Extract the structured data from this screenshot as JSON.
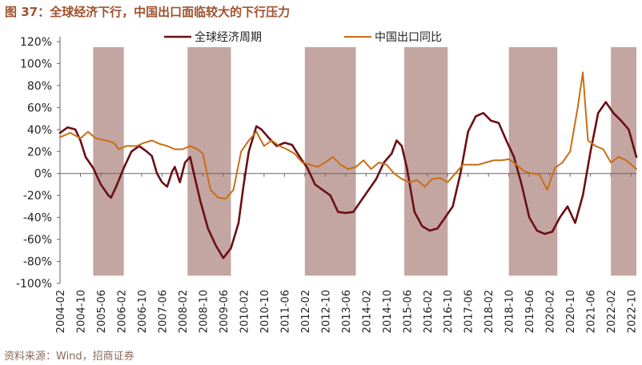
{
  "title": "图 37：全球经济下行，中国出口面临较大的下行压力",
  "source": "资料来源：Wind，招商证券",
  "chart_data": {
    "type": "line",
    "title": "图 37：全球经济下行，中国出口面临较大的下行压力",
    "xlabel": "",
    "ylabel": "",
    "ylim": [
      -100,
      120
    ],
    "yticks": [
      120,
      100,
      80,
      60,
      40,
      20,
      0,
      -20,
      -40,
      -60,
      -80,
      -100
    ],
    "ytick_labels": [
      "120%",
      "100%",
      "80%",
      "60%",
      "40%",
      "20%",
      "0%",
      "-20%",
      "-40%",
      "-60%",
      "-80%",
      "-100%"
    ],
    "x_tick_labels": [
      "2004-02",
      "2004-10",
      "2005-06",
      "2006-02",
      "2006-10",
      "2007-06",
      "2008-02",
      "2008-10",
      "2009-06",
      "2010-02",
      "2010-10",
      "2011-06",
      "2012-02",
      "2012-10",
      "2013-06",
      "2014-02",
      "2014-10",
      "2015-06",
      "2016-02",
      "2016-10",
      "2017-06",
      "2018-02",
      "2018-10",
      "2019-06",
      "2020-02",
      "2020-10",
      "2021-06",
      "2022-02",
      "2022-10"
    ],
    "x_range": [
      "2004-02",
      "2022-12"
    ],
    "grid": false,
    "legend_position": "top",
    "shaded_periods": [
      {
        "start": "2005-03",
        "end": "2006-03"
      },
      {
        "start": "2008-04",
        "end": "2009-09"
      },
      {
        "start": "2012-02",
        "end": "2013-10"
      },
      {
        "start": "2015-05",
        "end": "2016-10"
      },
      {
        "start": "2018-10",
        "end": "2020-05"
      },
      {
        "start": "2022-02",
        "end": "2022-12"
      }
    ],
    "shade_color": "#c3a5a2",
    "series": [
      {
        "name": "全球经济周期",
        "color": "#6b0f14",
        "points": [
          [
            "2004-02",
            37
          ],
          [
            "2004-05",
            42
          ],
          [
            "2004-08",
            40
          ],
          [
            "2004-10",
            30
          ],
          [
            "2004-12",
            15
          ],
          [
            "2005-03",
            5
          ],
          [
            "2005-06",
            -10
          ],
          [
            "2005-09",
            -20
          ],
          [
            "2005-10",
            -22
          ],
          [
            "2005-12",
            -12
          ],
          [
            "2006-03",
            5
          ],
          [
            "2006-06",
            20
          ],
          [
            "2006-09",
            25
          ],
          [
            "2006-12",
            20
          ],
          [
            "2007-02",
            16
          ],
          [
            "2007-04",
            0
          ],
          [
            "2007-06",
            -8
          ],
          [
            "2007-08",
            -12
          ],
          [
            "2007-10",
            2
          ],
          [
            "2007-11",
            6
          ],
          [
            "2008-01",
            -8
          ],
          [
            "2008-03",
            10
          ],
          [
            "2008-05",
            15
          ],
          [
            "2008-07",
            -5
          ],
          [
            "2008-09",
            -25
          ],
          [
            "2008-12",
            -50
          ],
          [
            "2009-03",
            -65
          ],
          [
            "2009-06",
            -77
          ],
          [
            "2009-09",
            -68
          ],
          [
            "2009-12",
            -45
          ],
          [
            "2010-02",
            -10
          ],
          [
            "2010-04",
            20
          ],
          [
            "2010-07",
            43
          ],
          [
            "2010-09",
            40
          ],
          [
            "2010-12",
            32
          ],
          [
            "2011-03",
            25
          ],
          [
            "2011-06",
            28
          ],
          [
            "2011-09",
            26
          ],
          [
            "2011-12",
            15
          ],
          [
            "2012-03",
            5
          ],
          [
            "2012-06",
            -10
          ],
          [
            "2012-09",
            -15
          ],
          [
            "2012-12",
            -20
          ],
          [
            "2013-03",
            -35
          ],
          [
            "2013-06",
            -36
          ],
          [
            "2013-09",
            -35
          ],
          [
            "2013-12",
            -25
          ],
          [
            "2014-03",
            -15
          ],
          [
            "2014-06",
            -5
          ],
          [
            "2014-09",
            10
          ],
          [
            "2014-12",
            18
          ],
          [
            "2015-02",
            30
          ],
          [
            "2015-04",
            25
          ],
          [
            "2015-06",
            5
          ],
          [
            "2015-09",
            -35
          ],
          [
            "2015-12",
            -48
          ],
          [
            "2016-03",
            -52
          ],
          [
            "2016-06",
            -50
          ],
          [
            "2016-09",
            -40
          ],
          [
            "2016-12",
            -30
          ],
          [
            "2017-03",
            0
          ],
          [
            "2017-06",
            38
          ],
          [
            "2017-09",
            52
          ],
          [
            "2017-12",
            55
          ],
          [
            "2018-03",
            48
          ],
          [
            "2018-06",
            46
          ],
          [
            "2018-09",
            30
          ],
          [
            "2018-12",
            15
          ],
          [
            "2019-03",
            -10
          ],
          [
            "2019-06",
            -40
          ],
          [
            "2019-09",
            -52
          ],
          [
            "2019-12",
            -55
          ],
          [
            "2020-03",
            -53
          ],
          [
            "2020-06",
            -40
          ],
          [
            "2020-09",
            -30
          ],
          [
            "2020-12",
            -45
          ],
          [
            "2021-03",
            -20
          ],
          [
            "2021-06",
            20
          ],
          [
            "2021-09",
            55
          ],
          [
            "2021-12",
            65
          ],
          [
            "2022-03",
            55
          ],
          [
            "2022-06",
            48
          ],
          [
            "2022-09",
            40
          ],
          [
            "2022-12",
            15
          ]
        ]
      },
      {
        "name": "中国出口同比",
        "color": "#c86e14",
        "points": [
          [
            "2004-02",
            33
          ],
          [
            "2004-06",
            37
          ],
          [
            "2004-10",
            32
          ],
          [
            "2005-01",
            38
          ],
          [
            "2005-04",
            32
          ],
          [
            "2005-08",
            30
          ],
          [
            "2005-11",
            28
          ],
          [
            "2006-01",
            22
          ],
          [
            "2006-04",
            25
          ],
          [
            "2006-08",
            25
          ],
          [
            "2006-11",
            28
          ],
          [
            "2007-02",
            30
          ],
          [
            "2007-05",
            27
          ],
          [
            "2007-08",
            25
          ],
          [
            "2007-11",
            22
          ],
          [
            "2008-02",
            22
          ],
          [
            "2008-05",
            25
          ],
          [
            "2008-08",
            22
          ],
          [
            "2008-10",
            18
          ],
          [
            "2009-01",
            -15
          ],
          [
            "2009-04",
            -22
          ],
          [
            "2009-07",
            -23
          ],
          [
            "2009-10",
            -15
          ],
          [
            "2010-01",
            20
          ],
          [
            "2010-04",
            30
          ],
          [
            "2010-07",
            38
          ],
          [
            "2010-10",
            25
          ],
          [
            "2011-01",
            30
          ],
          [
            "2011-04",
            25
          ],
          [
            "2011-07",
            22
          ],
          [
            "2011-10",
            18
          ],
          [
            "2012-01",
            10
          ],
          [
            "2012-04",
            8
          ],
          [
            "2012-07",
            6
          ],
          [
            "2012-10",
            10
          ],
          [
            "2013-01",
            15
          ],
          [
            "2013-04",
            8
          ],
          [
            "2013-07",
            4
          ],
          [
            "2013-10",
            6
          ],
          [
            "2014-01",
            12
          ],
          [
            "2014-04",
            4
          ],
          [
            "2014-07",
            10
          ],
          [
            "2014-10",
            8
          ],
          [
            "2015-01",
            0
          ],
          [
            "2015-04",
            -5
          ],
          [
            "2015-07",
            -8
          ],
          [
            "2015-10",
            -6
          ],
          [
            "2016-01",
            -12
          ],
          [
            "2016-04",
            -5
          ],
          [
            "2016-07",
            -4
          ],
          [
            "2016-10",
            -8
          ],
          [
            "2017-01",
            0
          ],
          [
            "2017-04",
            8
          ],
          [
            "2017-07",
            8
          ],
          [
            "2017-10",
            8
          ],
          [
            "2018-01",
            10
          ],
          [
            "2018-04",
            12
          ],
          [
            "2018-07",
            12
          ],
          [
            "2018-10",
            13
          ],
          [
            "2019-01",
            8
          ],
          [
            "2019-04",
            2
          ],
          [
            "2019-07",
            0
          ],
          [
            "2019-10",
            -1
          ],
          [
            "2020-01",
            -15
          ],
          [
            "2020-04",
            5
          ],
          [
            "2020-07",
            10
          ],
          [
            "2020-10",
            20
          ],
          [
            "2021-01",
            60
          ],
          [
            "2021-03",
            92
          ],
          [
            "2021-05",
            30
          ],
          [
            "2021-08",
            25
          ],
          [
            "2021-11",
            22
          ],
          [
            "2022-02",
            10
          ],
          [
            "2022-05",
            15
          ],
          [
            "2022-08",
            12
          ],
          [
            "2022-12",
            4
          ]
        ]
      }
    ]
  }
}
